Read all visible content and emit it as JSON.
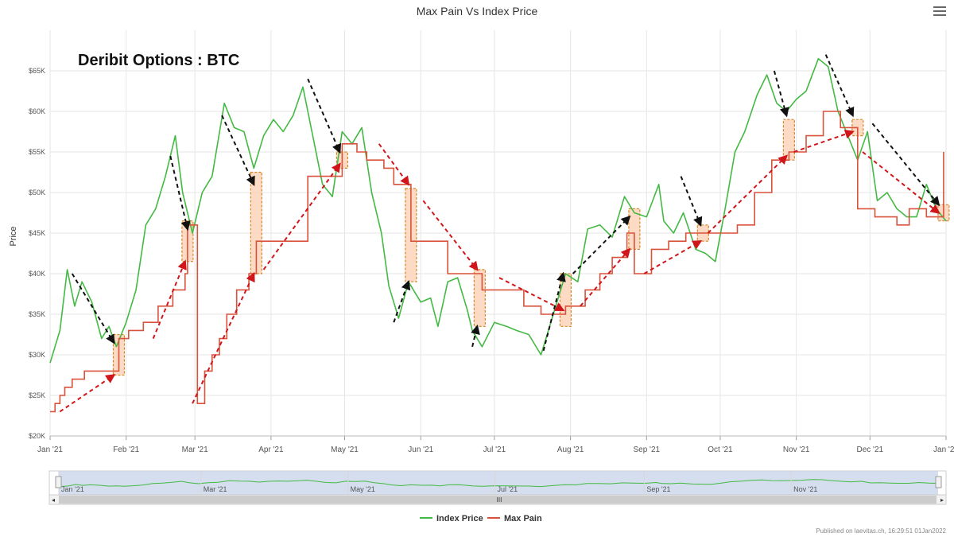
{
  "chart_data": {
    "type": "line",
    "title": "Max Pain Vs Index Price",
    "annotation": "Deribit Options : BTC",
    "ylabel": "Price",
    "ylim": [
      20000,
      70000
    ],
    "y_ticks": [
      "$20K",
      "$25K",
      "$30K",
      "$35K",
      "$40K",
      "$45K",
      "$50K",
      "$55K",
      "$60K",
      "$65K"
    ],
    "x_ticks": [
      "Jan '21",
      "Feb '21",
      "Mar '21",
      "Apr '21",
      "May '21",
      "Jun '21",
      "Jul '21",
      "Aug '21",
      "Sep '21",
      "Oct '21",
      "Nov '21",
      "Dec '21",
      "Jan '22"
    ],
    "grid": true,
    "legend_position": "bottom",
    "navigator_ticks": [
      "Jan '21",
      "Mar '21",
      "May '21",
      "Jul '21",
      "Sep '21",
      "Nov '21"
    ],
    "series": [
      {
        "name": "Index Price",
        "color": "#44b944",
        "x": [
          "2021-01-01",
          "2021-01-05",
          "2021-01-08",
          "2021-01-11",
          "2021-01-14",
          "2021-01-18",
          "2021-01-22",
          "2021-01-25",
          "2021-01-28",
          "2021-02-01",
          "2021-02-05",
          "2021-02-09",
          "2021-02-13",
          "2021-02-17",
          "2021-02-21",
          "2021-02-24",
          "2021-02-28",
          "2021-03-04",
          "2021-03-08",
          "2021-03-13",
          "2021-03-17",
          "2021-03-21",
          "2021-03-25",
          "2021-03-29",
          "2021-04-02",
          "2021-04-06",
          "2021-04-10",
          "2021-04-14",
          "2021-04-18",
          "2021-04-22",
          "2021-04-26",
          "2021-04-30",
          "2021-05-04",
          "2021-05-08",
          "2021-05-12",
          "2021-05-16",
          "2021-05-19",
          "2021-05-23",
          "2021-05-27",
          "2021-06-01",
          "2021-06-05",
          "2021-06-08",
          "2021-06-12",
          "2021-06-16",
          "2021-06-20",
          "2021-06-22",
          "2021-06-26",
          "2021-07-01",
          "2021-07-06",
          "2021-07-10",
          "2021-07-15",
          "2021-07-20",
          "2021-07-25",
          "2021-07-30",
          "2021-08-04",
          "2021-08-08",
          "2021-08-13",
          "2021-08-18",
          "2021-08-23",
          "2021-08-27",
          "2021-09-01",
          "2021-09-06",
          "2021-09-08",
          "2021-09-12",
          "2021-09-16",
          "2021-09-21",
          "2021-09-25",
          "2021-09-29",
          "2021-10-03",
          "2021-10-07",
          "2021-10-11",
          "2021-10-16",
          "2021-10-20",
          "2021-10-24",
          "2021-10-28",
          "2021-11-01",
          "2021-11-05",
          "2021-11-10",
          "2021-11-14",
          "2021-11-18",
          "2021-11-22",
          "2021-11-26",
          "2021-11-30",
          "2021-12-04",
          "2021-12-08",
          "2021-12-12",
          "2021-12-16",
          "2021-12-20",
          "2021-12-24",
          "2021-12-28",
          "2022-01-01"
        ],
        "values": [
          29000,
          33000,
          40500,
          36000,
          39000,
          36500,
          32000,
          33500,
          31000,
          34000,
          38000,
          46000,
          48000,
          52000,
          57000,
          50000,
          45000,
          50000,
          52000,
          61000,
          58000,
          57500,
          53000,
          57000,
          59000,
          57500,
          59500,
          63000,
          57000,
          51000,
          49500,
          57500,
          56000,
          58000,
          50000,
          45000,
          38500,
          34500,
          39000,
          36500,
          37000,
          33500,
          39000,
          39500,
          35500,
          33000,
          31000,
          34000,
          33500,
          33000,
          32500,
          30000,
          35000,
          40000,
          39000,
          45500,
          46000,
          44500,
          49500,
          47500,
          47000,
          51000,
          46500,
          45000,
          47500,
          43000,
          42500,
          41500,
          48000,
          55000,
          57500,
          62000,
          64500,
          61000,
          60000,
          61500,
          62500,
          66500,
          65500,
          60000,
          57000,
          54000,
          57500,
          49000,
          50000,
          48000,
          47000,
          47000,
          51000,
          48000,
          46500
        ]
      },
      {
        "name": "Max Pain",
        "color": "#d9523c",
        "x": [
          "2021-01-01",
          "2021-01-03",
          "2021-01-05",
          "2021-01-07",
          "2021-01-10",
          "2021-01-15",
          "2021-01-29",
          "2021-02-02",
          "2021-02-08",
          "2021-02-14",
          "2021-02-20",
          "2021-02-25",
          "2021-02-26",
          "2021-03-02",
          "2021-03-05",
          "2021-03-08",
          "2021-03-11",
          "2021-03-14",
          "2021-03-18",
          "2021-03-23",
          "2021-03-26",
          "2021-04-16",
          "2021-04-30",
          "2021-05-06",
          "2021-05-10",
          "2021-05-17",
          "2021-05-21",
          "2021-05-28",
          "2021-06-12",
          "2021-06-25",
          "2021-06-26",
          "2021-07-13",
          "2021-07-20",
          "2021-07-30",
          "2021-08-07",
          "2021-08-13",
          "2021-08-18",
          "2021-08-24",
          "2021-08-27",
          "2021-09-03",
          "2021-09-10",
          "2021-09-17",
          "2021-09-24",
          "2021-10-08",
          "2021-10-15",
          "2021-10-22",
          "2021-10-29",
          "2021-11-05",
          "2021-11-12",
          "2021-11-19",
          "2021-11-26",
          "2021-12-03",
          "2021-12-12",
          "2021-12-17",
          "2021-12-24",
          "2021-12-31"
        ],
        "values": [
          23000,
          24000,
          25000,
          26000,
          27000,
          28000,
          32000,
          33000,
          34000,
          36000,
          38000,
          40000,
          46000,
          24000,
          28000,
          30000,
          32000,
          35000,
          38000,
          40000,
          44000,
          52000,
          56000,
          55000,
          54000,
          53000,
          51000,
          44000,
          40000,
          40000,
          38000,
          36000,
          35000,
          36000,
          38000,
          40000,
          42000,
          45000,
          40000,
          43000,
          44000,
          45000,
          45000,
          46000,
          50000,
          54000,
          55000,
          57000,
          60000,
          58000,
          48000,
          47000,
          46000,
          48000,
          47000,
          55000
        ]
      }
    ],
    "reference_data": {
      "orange_highlight_boxes": [
        {
          "date": "2021-01-29",
          "low": 27500,
          "high": 32500
        },
        {
          "date": "2021-02-26",
          "low": 41500,
          "high": 46500
        },
        {
          "date": "2021-03-26",
          "low": 40000,
          "high": 52500
        },
        {
          "date": "2021-04-30",
          "low": 53000,
          "high": 55000
        },
        {
          "date": "2021-05-28",
          "low": 39000,
          "high": 50500
        },
        {
          "date": "2021-06-25",
          "low": 33500,
          "high": 40500
        },
        {
          "date": "2021-07-30",
          "low": 33500,
          "high": 40000
        },
        {
          "date": "2021-08-27",
          "low": 43000,
          "high": 48000
        },
        {
          "date": "2021-09-24",
          "low": 44000,
          "high": 46000
        },
        {
          "date": "2021-10-29",
          "low": 54000,
          "high": 59000
        },
        {
          "date": "2021-11-26",
          "low": 57000,
          "high": 59000
        },
        {
          "date": "2021-12-31",
          "low": 46500,
          "high": 48500
        }
      ]
    }
  },
  "footer": {
    "published": "Published on laevitas.ch, 16:29:51 01Jan2022"
  }
}
